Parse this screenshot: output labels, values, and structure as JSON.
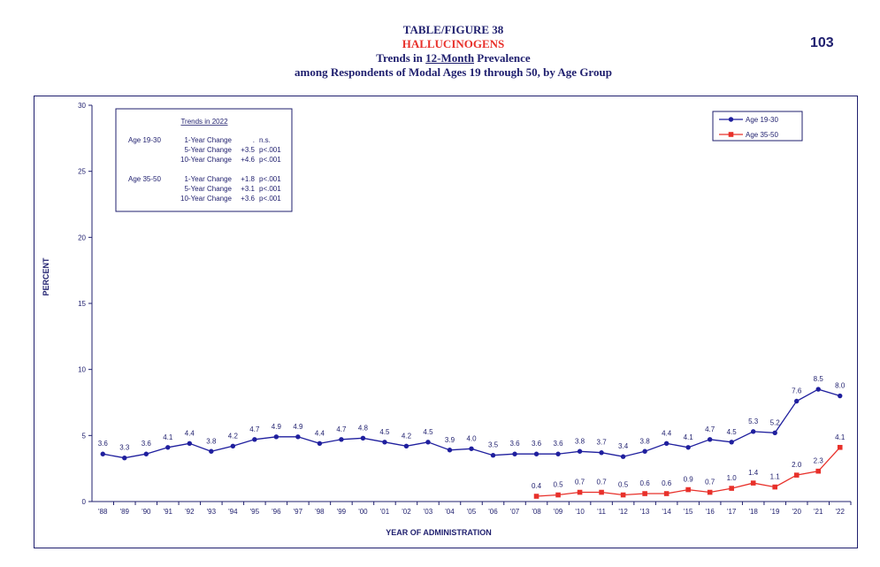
{
  "header": {
    "line1": "TABLE/FIGURE 38",
    "line2": "HALLUCINOGENS",
    "line3_prefix": "Trends in ",
    "line3_underlined": "12-Month",
    "line3_suffix": " Prevalence",
    "line4": "among Respondents of Modal Ages 19 through 50, by Age Group",
    "page_number": "103"
  },
  "colors": {
    "title": "#1f1f6e",
    "subtitle": "#e8302a",
    "series1": "#1f1f9e",
    "series2": "#e8302a"
  },
  "trends_box": {
    "title": "Trends in 2022",
    "rows": [
      {
        "group": "Age 19-30",
        "change": "1-Year Change",
        "value": ".",
        "sig": "n.s."
      },
      {
        "group": "",
        "change": "5-Year Change",
        "value": "+3.5",
        "sig": "p<.001"
      },
      {
        "group": "",
        "change": "10-Year Change",
        "value": "+4.6",
        "sig": "p<.001"
      },
      {
        "group": "Age 35-50",
        "change": "1-Year Change",
        "value": "+1.8",
        "sig": "p<.001"
      },
      {
        "group": "",
        "change": "5-Year Change",
        "value": "+3.1",
        "sig": "p<.001"
      },
      {
        "group": "",
        "change": "10-Year Change",
        "value": "+3.6",
        "sig": "p<.001"
      }
    ]
  },
  "chart_data": {
    "type": "line",
    "xlabel": "YEAR OF ADMINISTRATION",
    "ylabel": "PERCENT",
    "ylim": [
      0,
      30
    ],
    "yticks": [
      0,
      5,
      10,
      15,
      20,
      25,
      30
    ],
    "grid": false,
    "legend_position": "top-right",
    "categories": [
      "'88",
      "'89",
      "'90",
      "'91",
      "'92",
      "'93",
      "'94",
      "'95",
      "'96",
      "'97",
      "'98",
      "'99",
      "'00",
      "'01",
      "'02",
      "'03",
      "'04",
      "'05",
      "'06",
      "'07",
      "'08",
      "'09",
      "'10",
      "'11",
      "'12",
      "'13",
      "'14",
      "'15",
      "'16",
      "'17",
      "'18",
      "'19",
      "'20",
      "'21",
      "'22"
    ],
    "series": [
      {
        "name": "Age 19-30",
        "marker": "circle",
        "values": [
          3.6,
          3.3,
          3.6,
          4.1,
          4.4,
          3.8,
          4.2,
          4.7,
          4.9,
          4.9,
          4.4,
          4.7,
          4.8,
          4.5,
          4.2,
          4.5,
          3.9,
          4.0,
          3.5,
          3.6,
          3.6,
          3.6,
          3.8,
          3.7,
          3.4,
          3.8,
          4.4,
          4.1,
          4.7,
          4.5,
          5.3,
          5.2,
          7.6,
          8.5,
          8.0
        ],
        "labels": [
          "3.6",
          "3.3",
          "3.6",
          "4.1",
          "4.4",
          "3.8",
          "4.2",
          "4.7",
          "4.9",
          "4.9",
          "4.4",
          "4.7",
          "4.8",
          "4.5",
          "4.2",
          "4.5",
          "3.9",
          "4.0",
          "3.5",
          "3.6",
          "3.6",
          "3.6",
          "3.8",
          "3.7",
          "3.4",
          "3.8",
          "4.4",
          "4.1",
          "4.7",
          "4.5",
          "5.3",
          "5.2",
          "7.6",
          "8.5",
          "8.0"
        ]
      },
      {
        "name": "Age 35-50",
        "marker": "square",
        "values": [
          null,
          null,
          null,
          null,
          null,
          null,
          null,
          null,
          null,
          null,
          null,
          null,
          null,
          null,
          null,
          null,
          null,
          null,
          null,
          null,
          0.4,
          0.5,
          0.7,
          0.7,
          0.5,
          0.6,
          0.6,
          0.9,
          0.7,
          1.0,
          1.4,
          1.1,
          2.0,
          2.3,
          4.1
        ],
        "labels": [
          null,
          null,
          null,
          null,
          null,
          null,
          null,
          null,
          null,
          null,
          null,
          null,
          null,
          null,
          null,
          null,
          null,
          null,
          null,
          null,
          "0.4",
          "0.5",
          "0.7",
          "0.7",
          "0.5",
          "0.6",
          "0.6",
          "0.9",
          "0.7",
          "1.0",
          "1.4",
          "1.1",
          "2.0",
          "2.3",
          "4.1"
        ]
      }
    ]
  }
}
